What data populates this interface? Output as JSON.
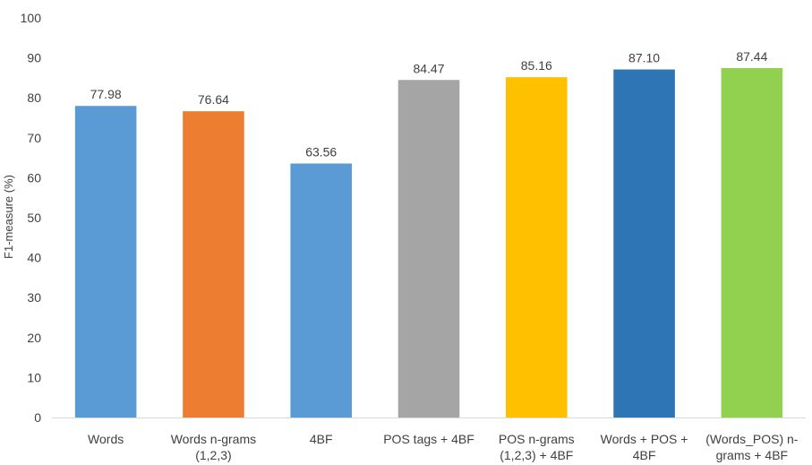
{
  "chart_data": {
    "type": "bar",
    "title": "",
    "xlabel": "",
    "ylabel": "F1-measure (%)",
    "ylim": [
      0,
      100
    ],
    "yticks": [
      "0",
      "10",
      "20",
      "30",
      "40",
      "50",
      "60",
      "70",
      "80",
      "90",
      "100"
    ],
    "grid": false,
    "legend": "none",
    "categories": [
      [
        "Words"
      ],
      [
        "Words n-grams",
        "(1,2,3)"
      ],
      [
        "4BF"
      ],
      [
        "POS tags + 4BF"
      ],
      [
        "POS n-grams",
        "(1,2,3) + 4BF"
      ],
      [
        "Words + POS +",
        "4BF"
      ],
      [
        "(Words_POS) n-",
        "grams + 4BF"
      ]
    ],
    "values": [
      77.98,
      76.64,
      63.56,
      84.47,
      85.16,
      87.1,
      87.44
    ],
    "value_labels": [
      "77.98",
      "76.64",
      "63.56",
      "84.47",
      "85.16",
      "87.10",
      "87.44"
    ],
    "colors": [
      "#5B9BD5",
      "#ED7D31",
      "#5B9BD5",
      "#A5A5A5",
      "#FFC000",
      "#2E75B6",
      "#92D050"
    ]
  }
}
